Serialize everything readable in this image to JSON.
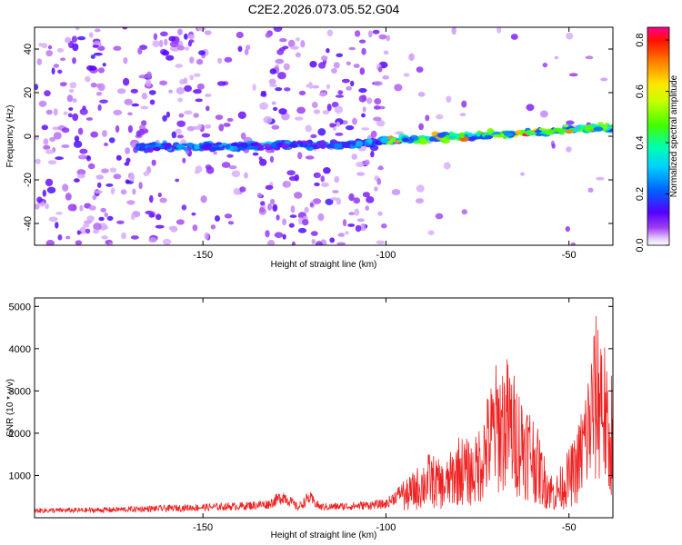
{
  "title": "C2E2.2026.073.05.52.G04",
  "chart_data": [
    {
      "type": "heatmap",
      "xlabel": "Height of straight line (km)",
      "ylabel": "Frequency (Hz)",
      "xlim": [
        -196,
        -38
      ],
      "ylim": [
        -50,
        50
      ],
      "xticks": [
        -150,
        -100,
        -50
      ],
      "yticks": [
        -40,
        -20,
        0,
        20,
        40
      ],
      "colorbar": {
        "label": "Normalized spectral amplitude",
        "range": [
          0,
          0.85
        ],
        "ticks": [
          0.0,
          0.2,
          0.4,
          0.6,
          0.8
        ]
      },
      "ridge": {
        "description_points_x": [
          -165,
          -150,
          -130,
          -110,
          -100,
          -90,
          -75,
          -60,
          -50,
          -40
        ],
        "description_points_freq": [
          -5,
          -5,
          -4,
          -4,
          -2,
          -1,
          0,
          2,
          3,
          4
        ]
      }
    },
    {
      "type": "line",
      "xlabel": "Height of straight line (km)",
      "ylabel": "SNR (10 * v/v)",
      "xlim": [
        -196,
        -38
      ],
      "ylim": [
        0,
        5200
      ],
      "xticks": [
        -150,
        -100,
        -50
      ],
      "yticks": [
        1000,
        2000,
        3000,
        4000,
        5000
      ],
      "color": "#ee2222",
      "envelope_x": [
        -196,
        -180,
        -160,
        -140,
        -132,
        -128,
        -124,
        -121,
        -118,
        -110,
        -100,
        -96,
        -92,
        -88,
        -84,
        -80,
        -76,
        -73,
        -70,
        -67,
        -64,
        -60,
        -57,
        -54,
        -51,
        -48,
        -45,
        -43,
        -41,
        -39,
        -38
      ],
      "envelope_y": [
        200,
        210,
        260,
        320,
        380,
        600,
        280,
        560,
        300,
        320,
        380,
        700,
        1100,
        1500,
        1200,
        1900,
        1700,
        2600,
        3500,
        3700,
        3100,
        2500,
        1500,
        900,
        1400,
        1900,
        3300,
        4500,
        5000,
        2500,
        4000
      ]
    }
  ]
}
